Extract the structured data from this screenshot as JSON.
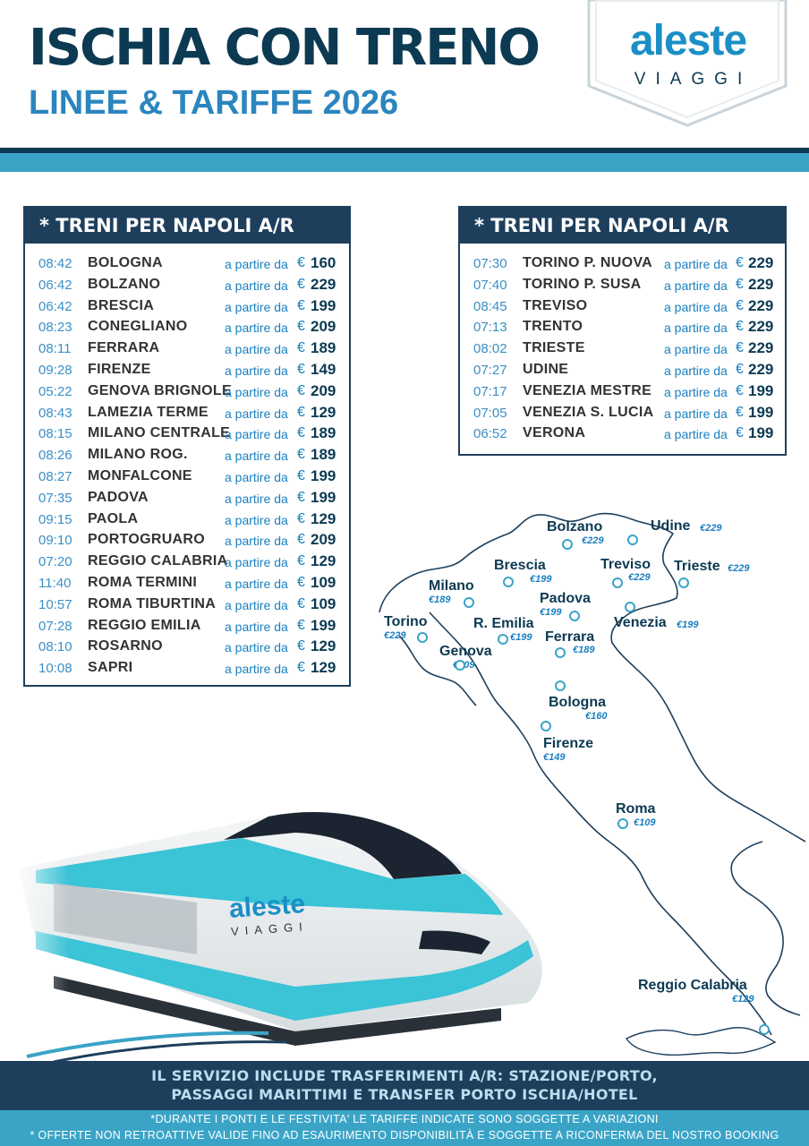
{
  "header": {
    "title": "ISCHIA CON TRENO",
    "subtitle": "LINEE & TARIFFE 2026",
    "logo_main": "aleste",
    "logo_sub": "VIAGGI"
  },
  "colors": {
    "navy": "#0c3a52",
    "panel_navy": "#1e3f5c",
    "blue": "#2b85be",
    "cyan": "#3aa4c7"
  },
  "panels": [
    {
      "heading": "* TRENI PER NAPOLI A/R",
      "rows": [
        {
          "time": "08:42",
          "city": "BOLOGNA",
          "from": "a partire da",
          "currency": "€",
          "price": "160"
        },
        {
          "time": "06:42",
          "city": "BOLZANO",
          "from": "a partire da",
          "currency": "€",
          "price": "229"
        },
        {
          "time": "06:42",
          "city": "BRESCIA",
          "from": "a partire da",
          "currency": "€",
          "price": "199"
        },
        {
          "time": "08:23",
          "city": "CONEGLIANO",
          "from": "a partire da",
          "currency": "€",
          "price": "209"
        },
        {
          "time": "08:11",
          "city": "FERRARA",
          "from": "a partire da",
          "currency": "€",
          "price": "189"
        },
        {
          "time": "09:28",
          "city": "FIRENZE",
          "from": "a partire da",
          "currency": "€",
          "price": "149"
        },
        {
          "time": "05:22",
          "city": "GENOVA BRIGNOLE",
          "from": "a partire da",
          "currency": "€",
          "price": "209"
        },
        {
          "time": "08:43",
          "city": "LAMEZIA TERME",
          "from": "a partire da",
          "currency": "€",
          "price": "129"
        },
        {
          "time": "08:15",
          "city": "MILANO CENTRALE",
          "from": "a partire da",
          "currency": "€",
          "price": "189"
        },
        {
          "time": "08:26",
          "city": "MILANO ROG.",
          "from": "a partire da",
          "currency": "€",
          "price": "189"
        },
        {
          "time": "08:27",
          "city": "MONFALCONE",
          "from": "a partire da",
          "currency": "€",
          "price": "199"
        },
        {
          "time": "07:35",
          "city": "PADOVA",
          "from": "a partire da",
          "currency": "€",
          "price": "199"
        },
        {
          "time": "09:15",
          "city": "PAOLA",
          "from": "a partire da",
          "currency": "€",
          "price": "129"
        },
        {
          "time": "09:10",
          "city": "PORTOGRUARO",
          "from": "a partire da",
          "currency": "€",
          "price": "209"
        },
        {
          "time": "07:20",
          "city": "REGGIO CALABRIA",
          "from": "a partire da",
          "currency": "€",
          "price": "129"
        },
        {
          "time": "11:40",
          "city": "ROMA TERMINI",
          "from": "a partire da",
          "currency": "€",
          "price": "109"
        },
        {
          "time": "10:57",
          "city": "ROMA TIBURTINA",
          "from": "a partire da",
          "currency": "€",
          "price": "109"
        },
        {
          "time": "07:28",
          "city": "REGGIO EMILIA",
          "from": "a partire da",
          "currency": "€",
          "price": "199"
        },
        {
          "time": "08:10",
          "city": "ROSARNO",
          "from": "a partire da",
          "currency": "€",
          "price": "129"
        },
        {
          "time": "10:08",
          "city": "SAPRI",
          "from": "a partire da",
          "currency": "€",
          "price": "129"
        }
      ]
    },
    {
      "heading": "* TRENI PER NAPOLI A/R",
      "rows": [
        {
          "time": "07:30",
          "city": "TORINO P. NUOVA",
          "from": "a partire da",
          "currency": "€",
          "price": "229"
        },
        {
          "time": "07:40",
          "city": "TORINO P. SUSA",
          "from": "a partire da",
          "currency": "€",
          "price": "229"
        },
        {
          "time": "08:45",
          "city": "TREVISO",
          "from": "a partire da",
          "currency": "€",
          "price": "229"
        },
        {
          "time": "07:13",
          "city": "TRENTO",
          "from": "a partire da",
          "currency": "€",
          "price": "229"
        },
        {
          "time": "08:02",
          "city": "TRIESTE",
          "from": "a partire da",
          "currency": "€",
          "price": "229"
        },
        {
          "time": "07:27",
          "city": "UDINE",
          "from": "a partire da",
          "currency": "€",
          "price": "229"
        },
        {
          "time": "07:17",
          "city": "VENEZIA MESTRE",
          "from": "a partire da",
          "currency": "€",
          "price": "199"
        },
        {
          "time": "07:05",
          "city": "VENEZIA S. LUCIA",
          "from": "a partire da",
          "currency": "€",
          "price": "199"
        },
        {
          "time": "06:52",
          "city": "VERONA",
          "from": "a partire da",
          "currency": "€",
          "price": "199"
        }
      ]
    }
  ],
  "map": {
    "cities": [
      {
        "name": "Bolzano",
        "price": "€229"
      },
      {
        "name": "Udine",
        "price": "€229"
      },
      {
        "name": "Brescia",
        "price": "€199"
      },
      {
        "name": "Treviso",
        "price": "€229"
      },
      {
        "name": "Trieste",
        "price": "€229"
      },
      {
        "name": "Milano",
        "price": "€189"
      },
      {
        "name": "Padova",
        "price": "€199"
      },
      {
        "name": "Torino",
        "price": "€229"
      },
      {
        "name": "R. Emilia",
        "price": "€199"
      },
      {
        "name": "Venezia",
        "price": "€199"
      },
      {
        "name": "Ferrara",
        "price": "€189"
      },
      {
        "name": "Genova",
        "price": "€209"
      },
      {
        "name": "Bologna",
        "price": "€160"
      },
      {
        "name": "Firenze",
        "price": "€149"
      },
      {
        "name": "Roma",
        "price": "€109"
      },
      {
        "name": "Reggio Calabria",
        "price": "€129"
      }
    ]
  },
  "train": {
    "logo_main": "aleste",
    "logo_sub": "VIAGGI"
  },
  "footer": {
    "line1": "IL SERVIZIO INCLUDE TRASFERIMENTI A/R: STAZIONE/PORTO,",
    "line2": "PASSAGGI MARITTIMI E TRANSFER PORTO ISCHIA/HOTEL",
    "note1": "*DURANTE I PONTI E LE FESTIVITA' LE TARIFFE INDICATE SONO SOGGETTE A VARIAZIONI",
    "note2": "* OFFERTE NON RETROATTIVE VALIDE FINO AD ESAURIMENTO DISPONIBILITÀ E SOGGETTE A RICONFERMA DEL NOSTRO BOOKING"
  }
}
